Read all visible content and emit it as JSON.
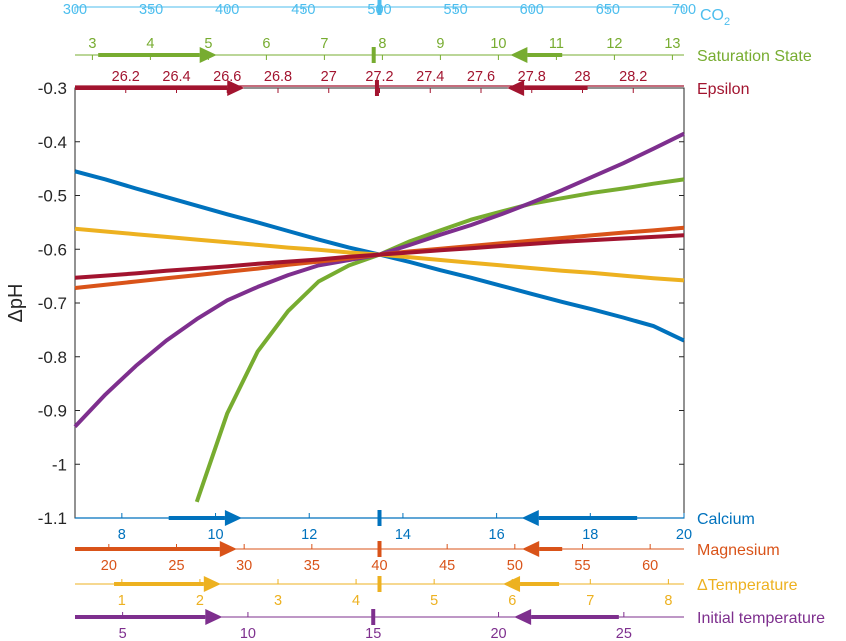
{
  "colors": {
    "co2": "#4DBEEE",
    "saturation": "#77AC30",
    "epsilon": "#A2142F",
    "calcium": "#0072BD",
    "magnesium": "#D95319",
    "delta_temperature": "#EDB120",
    "initial_temperature": "#7E2F8E",
    "axis": "#262626",
    "grid": "#ffffff"
  },
  "chart_data": {
    "type": "line",
    "ylabel": "ΔpH",
    "ylim": [
      -1.1,
      -0.3
    ],
    "yticks": [
      -1.1,
      -1,
      -0.9,
      -0.8,
      -0.7,
      -0.6,
      -0.5,
      -0.4,
      -0.3
    ],
    "yticklabels": [
      "-1.1",
      "-1",
      "-0.9",
      "-0.8",
      "-0.7",
      "-0.6",
      "-0.5",
      "-0.4",
      "-0.3"
    ],
    "x": [
      0,
      0.05,
      0.1,
      0.15,
      0.2,
      0.25,
      0.3,
      0.35,
      0.4,
      0.45,
      0.5,
      0.55,
      0.6,
      0.65,
      0.7,
      0.75,
      0.8,
      0.85,
      0.9,
      0.95,
      1
    ],
    "reference_point": 0.5,
    "reference_value": -0.61,
    "series": [
      {
        "key": "calcium",
        "values": [
          -0.455,
          -0.47,
          -0.487,
          -0.503,
          -0.519,
          -0.535,
          -0.55,
          -0.566,
          -0.582,
          -0.597,
          -0.61,
          -0.624,
          -0.639,
          -0.653,
          -0.668,
          -0.683,
          -0.698,
          -0.712,
          -0.727,
          -0.743,
          -0.77
        ]
      },
      {
        "key": "saturation",
        "values": [
          null,
          null,
          null,
          null,
          -1.07,
          -0.905,
          -0.79,
          -0.715,
          -0.66,
          -0.63,
          -0.61,
          -0.585,
          -0.565,
          -0.545,
          -0.53,
          -0.515,
          -0.505,
          -0.495,
          -0.487,
          -0.478,
          -0.47
        ]
      },
      {
        "key": "initial_temperature",
        "values": [
          -0.93,
          -0.87,
          -0.817,
          -0.77,
          -0.73,
          -0.695,
          -0.67,
          -0.648,
          -0.63,
          -0.62,
          -0.61,
          -0.592,
          -0.573,
          -0.555,
          -0.535,
          -0.513,
          -0.49,
          -0.465,
          -0.44,
          -0.413,
          -0.385
        ]
      },
      {
        "key": "delta_temperature",
        "values": [
          -0.562,
          -0.567,
          -0.572,
          -0.577,
          -0.582,
          -0.587,
          -0.592,
          -0.597,
          -0.601,
          -0.606,
          -0.61,
          -0.615,
          -0.62,
          -0.625,
          -0.63,
          -0.635,
          -0.64,
          -0.644,
          -0.649,
          -0.654,
          -0.658
        ]
      },
      {
        "key": "magnesium",
        "values": [
          -0.672,
          -0.666,
          -0.66,
          -0.654,
          -0.648,
          -0.642,
          -0.636,
          -0.629,
          -0.623,
          -0.617,
          -0.61,
          -0.604,
          -0.599,
          -0.594,
          -0.589,
          -0.584,
          -0.579,
          -0.574,
          -0.569,
          -0.565,
          -0.56
        ]
      },
      {
        "key": "epsilon",
        "values": [
          -0.653,
          -0.649,
          -0.645,
          -0.64,
          -0.636,
          -0.632,
          -0.627,
          -0.623,
          -0.619,
          -0.614,
          -0.61,
          -0.606,
          -0.602,
          -0.598,
          -0.594,
          -0.59,
          -0.586,
          -0.583,
          -0.58,
          -0.577,
          -0.574
        ]
      }
    ],
    "axes": [
      {
        "key": "co2",
        "label": "CO",
        "label_sub": "2",
        "position": "top",
        "ticks": [
          300,
          350,
          400,
          450,
          500,
          550,
          600,
          650,
          700
        ],
        "range": [
          300,
          700
        ],
        "center_value": 500,
        "arrows": []
      },
      {
        "key": "saturation",
        "label": "Saturation State",
        "position": "top",
        "ticks": [
          3,
          4,
          5,
          6,
          7,
          8,
          9,
          10,
          11,
          12,
          13
        ],
        "range": [
          2.7,
          13.2
        ],
        "center_value": 7.85,
        "arrows": [
          {
            "direction": "right",
            "from": 3.1,
            "to": 4.85
          },
          {
            "direction": "left",
            "from": 11.1,
            "to": 10.5
          }
        ]
      },
      {
        "key": "epsilon",
        "label": "Epsilon",
        "position": "top",
        "ticks": [
          26.2,
          26.4,
          26.6,
          26.8,
          27,
          27.2,
          27.4,
          27.6,
          27.8,
          28,
          28.2
        ],
        "range": [
          26.0,
          28.4
        ],
        "center_value": 27.19,
        "arrows": [
          {
            "direction": "right",
            "from": 26.0,
            "to": 26.6
          },
          {
            "direction": "left",
            "from": 28.02,
            "to": 27.77
          }
        ]
      },
      {
        "key": "calcium",
        "label": "Calcium",
        "position": "bottom",
        "ticks": [
          8,
          10,
          12,
          14,
          16,
          18,
          20
        ],
        "range": [
          7.0,
          20.0
        ],
        "center_value": 13.5,
        "arrows": [
          {
            "direction": "right",
            "from": 9.0,
            "to": 10.2
          },
          {
            "direction": "left",
            "from": 19.0,
            "to": 16.9
          }
        ]
      },
      {
        "key": "magnesium",
        "label": "Magnesium",
        "position": "bottom",
        "ticks": [
          20,
          25,
          30,
          35,
          40,
          45,
          50,
          55,
          60
        ],
        "range": [
          17.5,
          62.5
        ],
        "center_value": 40,
        "arrows": [
          {
            "direction": "right",
            "from": 17.5,
            "to": 28.2
          },
          {
            "direction": "left",
            "from": 53.5,
            "to": 51.8
          }
        ]
      },
      {
        "key": "delta_temperature",
        "label": "ΔTemperature",
        "position": "bottom",
        "ticks": [
          1,
          2,
          3,
          4,
          5,
          6,
          7,
          8
        ],
        "range": [
          0.4,
          8.2
        ],
        "center_value": 4.3,
        "arrows": [
          {
            "direction": "right",
            "from": 0.9,
            "to": 2.05
          },
          {
            "direction": "left",
            "from": 6.6,
            "to": 6.1
          }
        ]
      },
      {
        "key": "initial_temperature",
        "label": "Initial temperature",
        "position": "bottom",
        "ticks": [
          5,
          10,
          15,
          20,
          25
        ],
        "range": [
          3.1,
          27.4
        ],
        "center_value": 15.0,
        "arrows": [
          {
            "direction": "right",
            "from": 3.1,
            "to": 8.3
          },
          {
            "direction": "left",
            "from": 24.8,
            "to": 21.3
          }
        ]
      }
    ]
  }
}
